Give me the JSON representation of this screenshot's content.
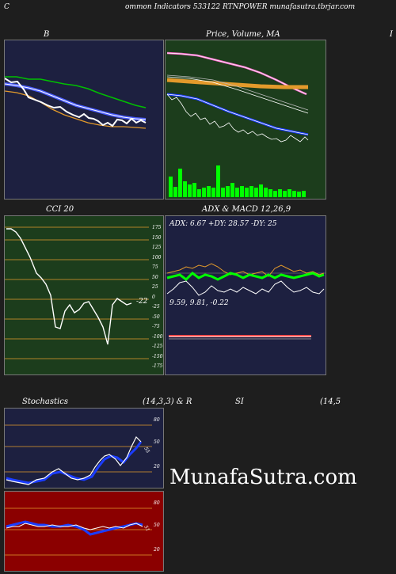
{
  "header": {
    "title": "ommon  Indicators 533122  RTNPOWER munafasutra.tbrjar.com",
    "left_char": "C"
  },
  "panels": {
    "bollinger": {
      "label": "B"
    },
    "price_ma": {
      "label": "Price,  Volume,  MA",
      "right_char": "I"
    },
    "cci": {
      "label": "CCI 20",
      "value": "-22",
      "ticks": [
        "175",
        "150",
        "125",
        "100",
        "75",
        "50",
        "25",
        "0",
        "-25",
        "-50",
        "-75",
        "-100",
        "-125",
        "-150",
        "-175"
      ]
    },
    "adx_macd": {
      "label": "ADX  & MACD 12,26,9",
      "adx_text": "ADX: 6.67 +DY: 28.57 -DY: 25",
      "macd_text": "9.59,  9.81,  -0.22"
    },
    "stochastics": {
      "label_left": "Stochastics",
      "label_mid": "(14,3,3) & R",
      "label_si": "SI",
      "label_right": "(14,5",
      "value": "55",
      "ticks": [
        "80",
        "50",
        "20"
      ]
    },
    "rsi": {
      "value": "51",
      "ticks": [
        "80",
        "50",
        "20"
      ]
    }
  },
  "watermark": "MunafaSutra.com",
  "colors": {
    "dark_navy": "#1d2040",
    "dark_green": "#1c3d1c",
    "dark_red": "#8b0000",
    "orange": "#e39a2b",
    "blue": "#1a3cff",
    "green": "#00c000"
  }
}
